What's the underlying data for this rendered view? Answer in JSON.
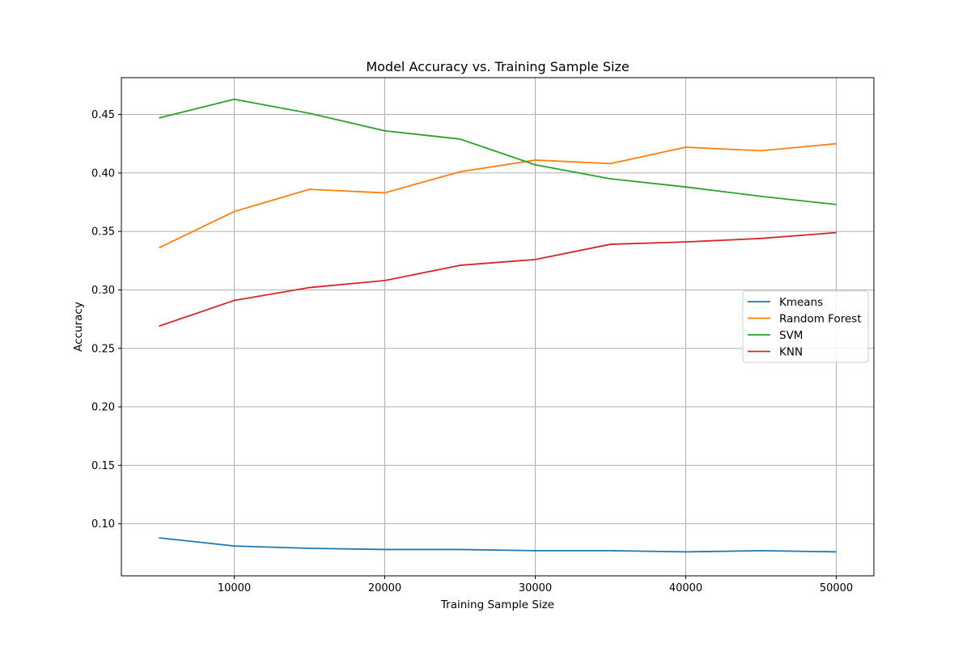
{
  "chart_data": {
    "type": "line",
    "title": "Model Accuracy vs. Training Sample Size",
    "xlabel": "Training Sample Size",
    "ylabel": "Accuracy",
    "x": [
      5000,
      10000,
      15000,
      20000,
      25000,
      30000,
      35000,
      40000,
      45000,
      50000
    ],
    "xlim": [
      2500,
      52500
    ],
    "ylim": [
      0.0555,
      0.4815
    ],
    "xticks": [
      10000,
      20000,
      30000,
      40000,
      50000
    ],
    "yticks": [
      0.1,
      0.15,
      0.2,
      0.25,
      0.3,
      0.35,
      0.4,
      0.45
    ],
    "ytick_labels": [
      "0.10",
      "0.15",
      "0.20",
      "0.25",
      "0.30",
      "0.35",
      "0.40",
      "0.45"
    ],
    "grid": true,
    "legend_position": "center-right",
    "series": [
      {
        "name": "Kmeans",
        "color": "#1f77b4",
        "values": [
          0.088,
          0.081,
          0.079,
          0.078,
          0.078,
          0.077,
          0.077,
          0.076,
          0.077,
          0.076
        ]
      },
      {
        "name": "Random Forest",
        "color": "#ff7f0e",
        "values": [
          0.336,
          0.367,
          0.386,
          0.383,
          0.401,
          0.411,
          0.408,
          0.422,
          0.419,
          0.425
        ]
      },
      {
        "name": "SVM",
        "color": "#2ca02c",
        "values": [
          0.447,
          0.463,
          0.451,
          0.436,
          0.429,
          0.407,
          0.395,
          0.388,
          0.38,
          0.373
        ]
      },
      {
        "name": "KNN",
        "color": "#d62728",
        "values": [
          0.269,
          0.291,
          0.302,
          0.308,
          0.321,
          0.326,
          0.339,
          0.341,
          0.344,
          0.349
        ]
      }
    ]
  }
}
